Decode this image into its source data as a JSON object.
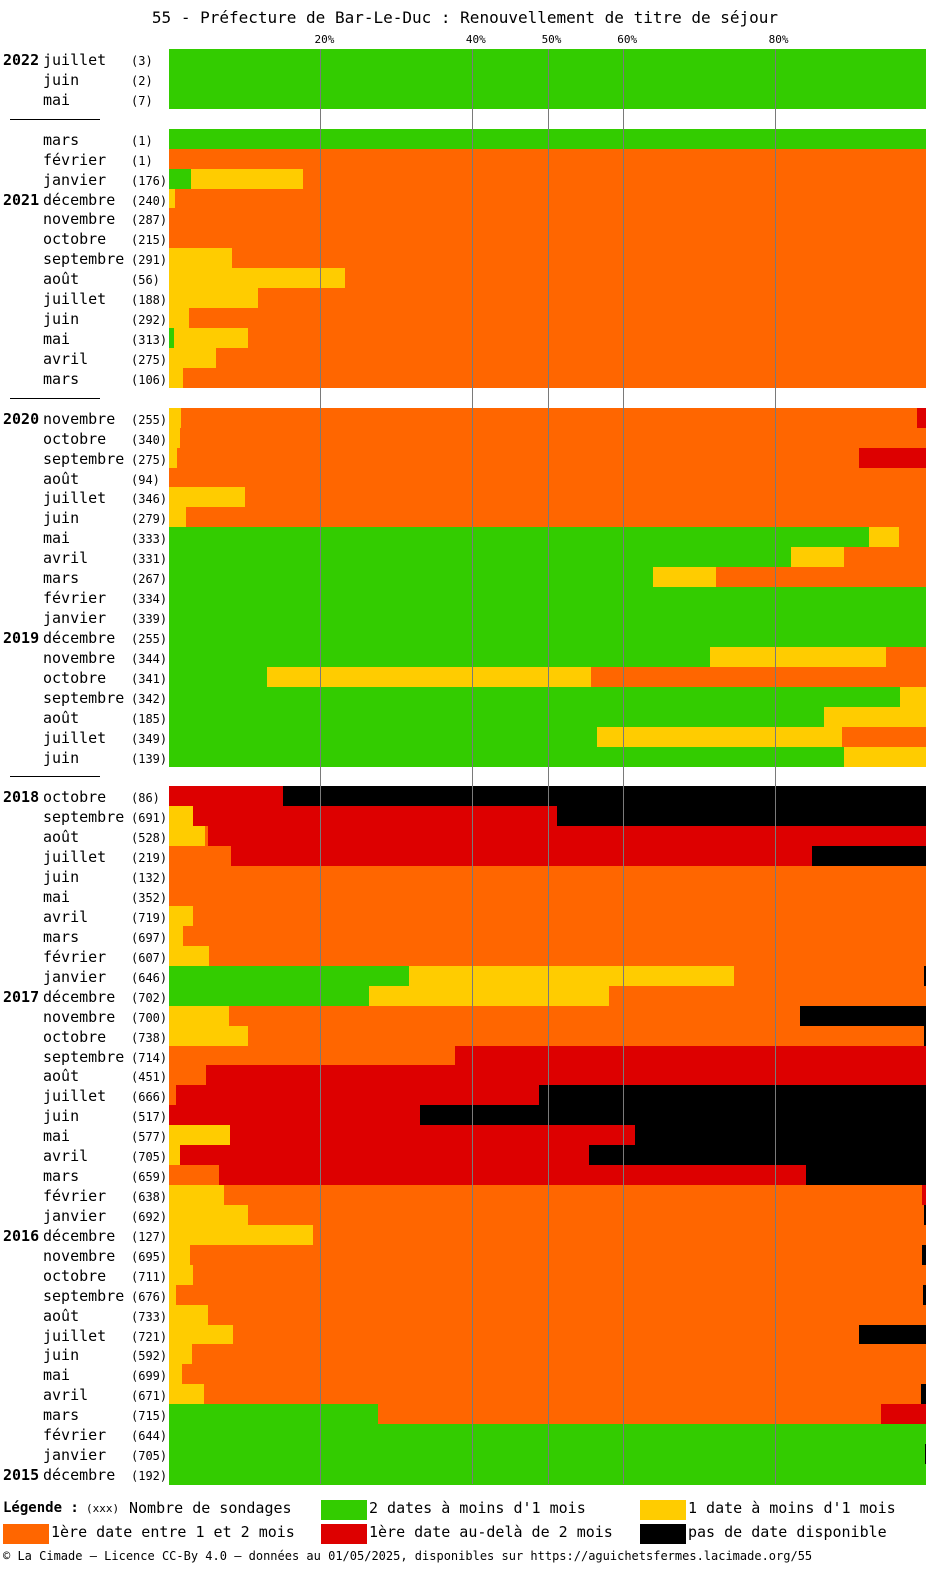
{
  "chart_data": {
    "type": "bar",
    "title": "55 - Préfecture de Bar-Le-Duc : Renouvellement de titre de séjour",
    "xticks": [
      {
        "label": "20%",
        "value": 20
      },
      {
        "label": "40%",
        "value": 40
      },
      {
        "label": "50%",
        "value": 50
      },
      {
        "label": "60%",
        "value": 60
      },
      {
        "label": "80%",
        "value": 80
      }
    ],
    "xlim": [
      0,
      100
    ],
    "stacked": true,
    "series_colors": [
      "#33cc00",
      "#ffcc00",
      "#ff6600",
      "#dd0000",
      "#000000"
    ],
    "rows": [
      {
        "year": "2022",
        "month": "juillet",
        "count": "(3)",
        "values": [
          100,
          0,
          0,
          0,
          0
        ]
      },
      {
        "year": "",
        "month": "juin",
        "count": "(2)",
        "values": [
          100,
          0,
          0,
          0,
          0
        ]
      },
      {
        "year": "",
        "month": "mai",
        "count": "(7)",
        "values": [
          100,
          0,
          0,
          0,
          0
        ]
      },
      {
        "gap": true
      },
      {
        "year": "",
        "month": "mars",
        "count": "(1)",
        "values": [
          100,
          0,
          0,
          0,
          0
        ]
      },
      {
        "year": "",
        "month": "février",
        "count": "(1)",
        "values": [
          0,
          0,
          100,
          0,
          0
        ]
      },
      {
        "year": "",
        "month": "janvier",
        "count": "(176)",
        "values": [
          2.9,
          14.8,
          82.3,
          0,
          0
        ]
      },
      {
        "year": "2021",
        "month": "décembre",
        "count": "(240)",
        "values": [
          0,
          0.8,
          99.2,
          0,
          0
        ]
      },
      {
        "year": "",
        "month": "novembre",
        "count": "(287)",
        "values": [
          0,
          0,
          100,
          0,
          0
        ]
      },
      {
        "year": "",
        "month": "octobre",
        "count": "(215)",
        "values": [
          0,
          0,
          100,
          0,
          0
        ]
      },
      {
        "year": "",
        "month": "septembre",
        "count": "(291)",
        "values": [
          0,
          8.3,
          91.7,
          0,
          0
        ]
      },
      {
        "year": "",
        "month": "août",
        "count": "(56)",
        "values": [
          0,
          23.2,
          76.8,
          0,
          0
        ]
      },
      {
        "year": "",
        "month": "juillet",
        "count": "(188)",
        "values": [
          0,
          11.7,
          88.3,
          0,
          0
        ]
      },
      {
        "year": "",
        "month": "juin",
        "count": "(292)",
        "values": [
          0,
          2.7,
          97.3,
          0,
          0
        ]
      },
      {
        "year": "",
        "month": "mai",
        "count": "(313)",
        "values": [
          0.6,
          9.9,
          89.5,
          0,
          0
        ]
      },
      {
        "year": "",
        "month": "avril",
        "count": "(275)",
        "values": [
          0,
          6.2,
          93.8,
          0,
          0
        ]
      },
      {
        "year": "",
        "month": "mars",
        "count": "(106)",
        "values": [
          0,
          1.9,
          98.1,
          0,
          0
        ]
      },
      {
        "gap": true
      },
      {
        "year": "2020",
        "month": "novembre",
        "count": "(255)",
        "values": [
          0,
          1.6,
          97.2,
          1.2,
          0
        ]
      },
      {
        "year": "",
        "month": "octobre",
        "count": "(340)",
        "values": [
          0,
          1.5,
          98.5,
          0,
          0
        ]
      },
      {
        "year": "",
        "month": "septembre",
        "count": "(275)",
        "values": [
          0,
          1.1,
          90.1,
          8.8,
          0
        ]
      },
      {
        "year": "",
        "month": "août",
        "count": "(94)",
        "values": [
          0,
          0,
          100,
          0,
          0
        ]
      },
      {
        "year": "",
        "month": "juillet",
        "count": "(346)",
        "values": [
          0,
          10.1,
          89.9,
          0,
          0
        ]
      },
      {
        "year": "",
        "month": "juin",
        "count": "(279)",
        "values": [
          0,
          2.2,
          97.8,
          0,
          0
        ]
      },
      {
        "year": "",
        "month": "mai",
        "count": "(333)",
        "values": [
          92.5,
          3.9,
          3.6,
          0,
          0
        ]
      },
      {
        "year": "",
        "month": "avril",
        "count": "(331)",
        "values": [
          82.2,
          7.0,
          10.8,
          0,
          0
        ]
      },
      {
        "year": "",
        "month": "mars",
        "count": "(267)",
        "values": [
          64.0,
          8.3,
          27.7,
          0,
          0
        ]
      },
      {
        "year": "",
        "month": "février",
        "count": "(334)",
        "values": [
          100,
          0,
          0,
          0,
          0
        ]
      },
      {
        "year": "",
        "month": "janvier",
        "count": "(339)",
        "values": [
          100,
          0,
          0,
          0,
          0
        ]
      },
      {
        "year": "2019",
        "month": "décembre",
        "count": "(255)",
        "values": [
          100,
          0,
          0,
          0,
          0
        ]
      },
      {
        "year": "",
        "month": "novembre",
        "count": "(344)",
        "values": [
          71.5,
          23.2,
          5.3,
          0,
          0
        ]
      },
      {
        "year": "",
        "month": "octobre",
        "count": "(341)",
        "values": [
          12.9,
          42.8,
          44.3,
          0,
          0
        ]
      },
      {
        "year": "",
        "month": "septembre",
        "count": "(342)",
        "values": [
          96.5,
          3.5,
          0,
          0,
          0
        ]
      },
      {
        "year": "",
        "month": "août",
        "count": "(185)",
        "values": [
          86.5,
          13.5,
          0,
          0,
          0
        ]
      },
      {
        "year": "",
        "month": "juillet",
        "count": "(349)",
        "values": [
          56.5,
          32.4,
          11.1,
          0,
          0
        ]
      },
      {
        "year": "",
        "month": "juin",
        "count": "(139)",
        "values": [
          89.2,
          10.8,
          0,
          0,
          0
        ]
      },
      {
        "gap": true
      },
      {
        "year": "2018",
        "month": "octobre",
        "count": "(86)",
        "values": [
          0,
          0,
          0,
          15.1,
          84.9
        ]
      },
      {
        "year": "",
        "month": "septembre",
        "count": "(691)",
        "values": [
          0,
          3.2,
          0,
          48.1,
          48.7
        ]
      },
      {
        "year": "",
        "month": "août",
        "count": "(528)",
        "values": [
          0,
          4.7,
          0.4,
          94.9,
          0
        ]
      },
      {
        "year": "",
        "month": "juillet",
        "count": "(219)",
        "values": [
          0,
          0,
          8.2,
          76.7,
          15.1
        ]
      },
      {
        "year": "",
        "month": "juin",
        "count": "(132)",
        "values": [
          0,
          0,
          100,
          0,
          0
        ]
      },
      {
        "year": "",
        "month": "mai",
        "count": "(352)",
        "values": [
          0,
          0,
          100,
          0,
          0
        ]
      },
      {
        "year": "",
        "month": "avril",
        "count": "(719)",
        "values": [
          0,
          3.2,
          96.8,
          0,
          0
        ]
      },
      {
        "year": "",
        "month": "mars",
        "count": "(697)",
        "values": [
          0,
          1.9,
          98.1,
          0,
          0
        ]
      },
      {
        "year": "",
        "month": "février",
        "count": "(607)",
        "values": [
          0,
          5.3,
          94.7,
          0,
          0
        ]
      },
      {
        "year": "",
        "month": "janvier",
        "count": "(646)",
        "values": [
          31.7,
          43.0,
          25.1,
          0,
          0.2
        ]
      },
      {
        "year": "2017",
        "month": "décembre",
        "count": "(702)",
        "values": [
          26.4,
          31.7,
          41.9,
          0,
          0
        ]
      },
      {
        "year": "",
        "month": "novembre",
        "count": "(700)",
        "values": [
          0,
          7.9,
          75.4,
          0,
          16.7
        ]
      },
      {
        "year": "",
        "month": "octobre",
        "count": "(738)",
        "values": [
          0,
          10.4,
          89.4,
          0,
          0.2
        ]
      },
      {
        "year": "",
        "month": "septembre",
        "count": "(714)",
        "values": [
          0,
          0,
          37.8,
          62.2,
          0
        ]
      },
      {
        "year": "",
        "month": "août",
        "count": "(451)",
        "values": [
          0,
          0,
          4.9,
          95.1,
          0
        ]
      },
      {
        "year": "",
        "month": "juillet",
        "count": "(666)",
        "values": [
          0,
          0,
          0.9,
          48.0,
          51.1
        ]
      },
      {
        "year": "",
        "month": "juin",
        "count": "(517)",
        "values": [
          0,
          0,
          0,
          33.1,
          66.9
        ]
      },
      {
        "year": "",
        "month": "mai",
        "count": "(577)",
        "values": [
          0,
          8.0,
          0,
          53.6,
          38.4
        ]
      },
      {
        "year": "",
        "month": "avril",
        "count": "(705)",
        "values": [
          0,
          1.4,
          0,
          54.1,
          44.5
        ]
      },
      {
        "year": "",
        "month": "mars",
        "count": "(659)",
        "values": [
          0,
          0,
          6.6,
          77.5,
          15.9
        ]
      },
      {
        "year": "",
        "month": "février",
        "count": "(638)",
        "values": [
          0,
          7.2,
          92.3,
          0.5,
          0
        ]
      },
      {
        "year": "",
        "month": "janvier",
        "count": "(692)",
        "values": [
          0,
          10.5,
          89.2,
          0,
          0.3
        ]
      },
      {
        "year": "2016",
        "month": "décembre",
        "count": "(127)",
        "values": [
          0,
          19.0,
          81.0,
          0,
          0
        ]
      },
      {
        "year": "",
        "month": "novembre",
        "count": "(695)",
        "values": [
          0,
          2.8,
          96.7,
          0,
          0.5
        ]
      },
      {
        "year": "",
        "month": "octobre",
        "count": "(711)",
        "values": [
          0,
          3.2,
          96.8,
          0,
          0
        ]
      },
      {
        "year": "",
        "month": "septembre",
        "count": "(676)",
        "values": [
          0,
          0.9,
          98.7,
          0,
          0.4
        ]
      },
      {
        "year": "",
        "month": "août",
        "count": "(733)",
        "values": [
          0,
          5.1,
          94.9,
          0,
          0
        ]
      },
      {
        "year": "",
        "month": "juillet",
        "count": "(721)",
        "values": [
          0,
          8.5,
          82.6,
          0,
          8.9
        ]
      },
      {
        "year": "",
        "month": "juin",
        "count": "(592)",
        "values": [
          0,
          3.0,
          97.0,
          0,
          0
        ]
      },
      {
        "year": "",
        "month": "mai",
        "count": "(699)",
        "values": [
          0,
          1.7,
          98.3,
          0,
          0
        ]
      },
      {
        "year": "",
        "month": "avril",
        "count": "(671)",
        "values": [
          0,
          4.6,
          94.8,
          0,
          0.6
        ]
      },
      {
        "year": "",
        "month": "mars",
        "count": "(715)",
        "values": [
          27.6,
          0,
          66.5,
          5.9,
          0
        ]
      },
      {
        "year": "",
        "month": "février",
        "count": "(644)",
        "values": [
          100,
          0,
          0,
          0,
          0
        ]
      },
      {
        "year": "",
        "month": "janvier",
        "count": "(705)",
        "values": [
          99.9,
          0,
          0,
          0,
          0.1
        ]
      },
      {
        "year": "2015",
        "month": "décembre",
        "count": "(192)",
        "values": [
          100,
          0,
          0,
          0,
          0
        ]
      }
    ],
    "legend": {
      "title": "Légende :",
      "count_note": "(xxx)",
      "count_label": "Nombre de sondages",
      "items": [
        {
          "label": "2 dates à moins d'1 mois",
          "color": "#33cc00"
        },
        {
          "label": "1 date à moins d'1 mois",
          "color": "#ffcc00"
        },
        {
          "label": "1ère date entre 1 et 2 mois",
          "color": "#ff6600"
        },
        {
          "label": "1ère date au-delà de 2 mois",
          "color": "#dd0000"
        },
        {
          "label": "pas de date disponible",
          "color": "#000000"
        }
      ]
    }
  },
  "footer": "© La Cimade — Licence CC-By 4.0 — données au 01/05/2025, disponibles sur https://aguichetsfermes.lacimade.org/55"
}
